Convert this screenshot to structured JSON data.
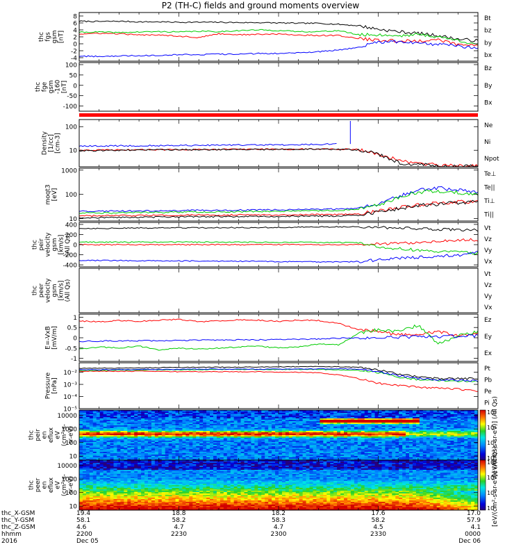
{
  "title": "P2 (TH-C) fields and ground moments overview",
  "chart_data": [
    {
      "type": "line",
      "ylabel": [
        "thc",
        "fgs",
        "gsm",
        "[nT]"
      ],
      "ylim": [
        -5,
        9
      ],
      "yticks": [
        -4,
        -2,
        0,
        2,
        4,
        6,
        8
      ],
      "series": [
        {
          "name": "Bt",
          "color": "#000000",
          "values": [
            6.5,
            6.4,
            6.5,
            6.3,
            6.3,
            6.2,
            6.2,
            6.2,
            6.1,
            6.1,
            6.0,
            5.9,
            5.9,
            5.6,
            5.2,
            4.2,
            3.5,
            3.0,
            2.4,
            1.3,
            0.9
          ]
        },
        {
          "name": "bz",
          "color": "#ff0000",
          "values": [
            2.8,
            3.0,
            2.9,
            2.5,
            2.6,
            2.2,
            1.8,
            2.9,
            2.6,
            2.7,
            2.8,
            2.5,
            2.4,
            2.4,
            1.5,
            1.0,
            0.8,
            0.8,
            1.2,
            -0.3,
            -0.5
          ]
        },
        {
          "name": "by",
          "color": "#00cc00",
          "values": [
            3.3,
            3.4,
            3.2,
            3.4,
            3.5,
            3.4,
            3.6,
            3.5,
            3.8,
            4.0,
            3.8,
            3.5,
            3.5,
            3.8,
            2.6,
            2.6,
            2.3,
            2.7,
            2.0,
            1.0,
            -0.1
          ]
        },
        {
          "name": "bx",
          "color": "#0000ff",
          "values": [
            -3.6,
            -3.6,
            -3.5,
            -3.4,
            -3.3,
            -3.1,
            -3.1,
            -3.0,
            -3.0,
            -2.8,
            -2.8,
            -2.5,
            -2.3,
            -1.8,
            -1.0,
            0.5,
            0.6,
            0.2,
            -0.2,
            -0.6,
            -1.2
          ]
        }
      ]
    },
    {
      "type": "line",
      "ylabel": [
        "thc",
        "fge",
        "gsm",
        "-160",
        "[nT]"
      ],
      "ylim": [
        -125,
        110
      ],
      "yticks": [
        -100,
        -50,
        0,
        50,
        100
      ],
      "series": [
        {
          "name": "Bz",
          "color": "#ff0000",
          "values": []
        },
        {
          "name": "By",
          "color": "#00cc00",
          "values": []
        },
        {
          "name": "Bx",
          "color": "#0000ff",
          "values": []
        }
      ]
    },
    {
      "type": "line",
      "ylabel": [
        "Density",
        "[1/cc]",
        "[cm-3]"
      ],
      "yscale": "log",
      "ylim": [
        2,
        200
      ],
      "yticks": [
        1,
        10,
        100
      ],
      "series": [
        {
          "name": "Ne",
          "color": "#ff0000",
          "values": [
            10,
            10.2,
            10.3,
            10.5,
            10.6,
            10.8,
            10.9,
            11,
            11,
            11,
            11.1,
            11.2,
            11.3,
            11.1,
            10.8,
            7,
            3.5,
            2.8,
            2.3,
            2.1,
            2.3
          ]
        },
        {
          "name": "Ni",
          "color": "#000000",
          "values": [
            9.5,
            9.8,
            10,
            10.2,
            10.4,
            10.5,
            10.6,
            10.7,
            10.8,
            10.8,
            10.9,
            11,
            11,
            10.8,
            10.5,
            6.5,
            3,
            2.5,
            2.1,
            2.0,
            2.2
          ]
        },
        {
          "name": "Npot",
          "color": "#0000ff",
          "values": [
            15,
            15,
            15.5,
            15.6,
            15.8,
            16,
            16.2,
            16.4,
            16.6,
            16.8,
            17,
            17.2,
            17.8,
            18.5,
            null,
            null,
            null,
            null,
            null,
            null,
            null
          ]
        }
      ]
    },
    {
      "type": "line",
      "ylabel": [
        "moqt3",
        "[eV]"
      ],
      "yscale": "log",
      "ylim": [
        8,
        1200
      ],
      "yticks": [
        10,
        100,
        1000
      ],
      "series": [
        {
          "name": "Te⊥",
          "color": "#ff0000",
          "values": [
            13,
            13,
            13.2,
            13.5,
            13.8,
            14,
            14,
            14.1,
            14.2,
            14.3,
            14.4,
            14.5,
            14.7,
            15,
            16,
            20,
            28,
            36,
            42,
            48,
            52
          ]
        },
        {
          "name": "Te||",
          "color": "#000000",
          "values": [
            11,
            11,
            11.2,
            11.4,
            11.6,
            11.8,
            12,
            12.1,
            12.2,
            12.3,
            12.4,
            12.5,
            12.7,
            13,
            14,
            18,
            26,
            34,
            40,
            46,
            50
          ]
        },
        {
          "name": "Ti⊥",
          "color": "#0000ff",
          "values": [
            20,
            20,
            20.5,
            21,
            21,
            21.5,
            22,
            22,
            22.5,
            23,
            23,
            23.5,
            24,
            25,
            27,
            40,
            80,
            150,
            180,
            160,
            120
          ]
        },
        {
          "name": "Ti||",
          "color": "#00cc00",
          "values": [
            17,
            17,
            17.5,
            17.8,
            18,
            18.5,
            19,
            19,
            19.5,
            20,
            20,
            20.5,
            21,
            22,
            24,
            35,
            70,
            120,
            140,
            120,
            90
          ]
        }
      ]
    },
    {
      "type": "line",
      "ylabel": [
        "thc",
        "peir",
        "velocity",
        "gsm",
        "[km/s]",
        "(All Qs)"
      ],
      "ylim": [
        -440,
        440
      ],
      "yticks": [
        -400,
        -200,
        0,
        200,
        400
      ],
      "series": [
        {
          "name": "Vt",
          "color": "#000000",
          "values": [
            320,
            322,
            325,
            328,
            330,
            332,
            333,
            334,
            336,
            338,
            340,
            345,
            350,
            352,
            350,
            340,
            330,
            320,
            305,
            295,
            285
          ]
        },
        {
          "name": "Vz",
          "color": "#ff0000",
          "values": [
            0,
            0,
            0,
            0,
            0,
            0,
            0,
            0,
            0,
            0,
            0,
            0,
            0,
            0,
            2,
            10,
            20,
            40,
            70,
            90,
            95
          ]
        },
        {
          "name": "Vy",
          "color": "#00cc00",
          "values": [
            50,
            50,
            50,
            50,
            50,
            50,
            50,
            49,
            48,
            48,
            47,
            46,
            45,
            42,
            35,
            -40,
            -80,
            -110,
            -130,
            -150,
            -165
          ]
        },
        {
          "name": "Vx",
          "color": "#0000ff",
          "values": [
            -310,
            -312,
            -315,
            -318,
            -320,
            -322,
            -325,
            -327,
            -330,
            -332,
            -335,
            -338,
            -342,
            -345,
            -335,
            -300,
            -270,
            -250,
            -230,
            -210,
            -150
          ]
        }
      ]
    },
    {
      "type": "line",
      "ylabel": [
        "thc",
        "peer",
        "velocity",
        "gsm",
        "[km/s]",
        "(All Qs)"
      ],
      "ylim": [
        -420,
        420
      ],
      "yticks": [],
      "series": [
        {
          "name": "Vt",
          "color": "#000000",
          "values": []
        },
        {
          "name": "Vz",
          "color": "#ff0000",
          "values": []
        },
        {
          "name": "Vy",
          "color": "#00cc00",
          "values": []
        },
        {
          "name": "Vx",
          "color": "#0000ff",
          "values": []
        }
      ]
    },
    {
      "type": "line",
      "ylabel": [
        "E=-VxB",
        "[mV/m]"
      ],
      "ylim": [
        -1.15,
        1.15
      ],
      "yticks": [
        -1.0,
        -0.5,
        0.0,
        0.5,
        1.0
      ],
      "series": [
        {
          "name": "Ez",
          "color": "#ff0000",
          "values": [
            0.82,
            0.78,
            0.84,
            0.8,
            0.86,
            0.9,
            0.78,
            0.82,
            0.88,
            0.85,
            0.8,
            0.86,
            0.84,
            0.7,
            0.4,
            0.3,
            0.15,
            0.2,
            0.3,
            0.1,
            0.2
          ]
        },
        {
          "name": "Ey",
          "color": "#00cc00",
          "values": [
            -0.55,
            -0.45,
            -0.5,
            -0.4,
            -0.6,
            -0.5,
            -0.55,
            -0.5,
            -0.45,
            -0.4,
            -0.5,
            -0.45,
            -0.3,
            -0.35,
            0.2,
            0.4,
            0.3,
            0.6,
            -0.3,
            0.1,
            0.3
          ]
        },
        {
          "name": "Ex",
          "color": "#0000ff",
          "values": [
            -0.18,
            -0.16,
            -0.15,
            -0.15,
            -0.14,
            -0.13,
            -0.12,
            -0.11,
            -0.1,
            -0.1,
            -0.09,
            -0.08,
            -0.06,
            -0.02,
            0.0,
            0.02,
            0.03,
            0.05,
            0.06,
            0.08,
            0.1
          ]
        }
      ]
    },
    {
      "type": "line",
      "ylabel": [
        "Pressure",
        "[nPa]"
      ],
      "yscale": "log",
      "ylim": [
        1e-05,
        0.06
      ],
      "yticks": [
        1e-05,
        0.0001,
        0.001,
        0.01
      ],
      "ytick_labels": [
        "10⁻⁵",
        "10⁻⁴",
        "10⁻³",
        "10⁻²"
      ],
      "series": [
        {
          "name": "Pt",
          "color": "#000000",
          "values": [
            0.021,
            0.022,
            0.022,
            0.023,
            0.024,
            0.025,
            0.025,
            0.026,
            0.026,
            0.027,
            0.028,
            0.029,
            0.03,
            0.028,
            0.025,
            0.015,
            0.007,
            0.004,
            0.003,
            0.003,
            0.003
          ]
        },
        {
          "name": "Pb",
          "color": "#ff0000",
          "values": [
            0.012,
            0.012,
            0.012,
            0.012,
            0.012,
            0.011,
            0.011,
            0.011,
            0.011,
            0.011,
            0.01,
            0.01,
            0.009,
            0.006,
            0.003,
            0.0012,
            0.0008,
            0.0006,
            0.0005,
            0.0004,
            0.0003
          ]
        },
        {
          "name": "Pe",
          "color": "#00cc00",
          "values": [
            0.014,
            0.014,
            0.015,
            0.015,
            0.016,
            0.016,
            0.016,
            0.017,
            0.017,
            0.017,
            0.017,
            0.017,
            0.017,
            0.016,
            0.014,
            0.009,
            0.004,
            0.0025,
            0.002,
            0.0019,
            0.0018
          ]
        },
        {
          "name": "Pi",
          "color": "#0000ff",
          "values": [
            0.016,
            0.016,
            0.017,
            0.017,
            0.017,
            0.017,
            0.018,
            0.018,
            0.018,
            0.018,
            0.018,
            0.018,
            0.019,
            0.019,
            0.018,
            0.011,
            0.005,
            0.003,
            0.0025,
            0.0022,
            0.002
          ]
        }
      ]
    },
    {
      "type": "heatmap",
      "ylabel": [
        "thc",
        "peir",
        "en",
        "eflux",
        "eV",
        "(cm²-s-",
        "sr-eV)"
      ],
      "yscale": "log",
      "ylim": [
        5,
        25000
      ],
      "yticks": [
        10,
        100,
        1000,
        10000
      ],
      "zlabel": "[eV/(cm²-s-sr-eV)] (All Qs)",
      "zlim": [
        100,
        100000000
      ],
      "ztick_labels": [
        "10²",
        "10⁴",
        "10⁶",
        "10⁸"
      ]
    },
    {
      "type": "heatmap",
      "ylabel": [
        "thc",
        "peer",
        "en",
        "eflux",
        "eV",
        "(cm²-s-",
        "sr-eV)"
      ],
      "yscale": "log",
      "ylim": [
        5,
        25000
      ],
      "yticks": [
        10,
        100,
        1000,
        10000
      ],
      "zlabel": "[eV/(cm²-s-sr-eV)] (All Qs)",
      "zlim": [
        100,
        100000000
      ],
      "ztick_labels": [
        "10²",
        "10⁴",
        "10⁶",
        "10⁸"
      ]
    }
  ],
  "xaxis": {
    "row_labels": [
      "thc_X-GSM",
      "thc_Y-GSM",
      "thc_Z-GSM",
      "hhmm",
      "2016"
    ],
    "ticks": [
      {
        "pos": 0.0,
        "rows": [
          "19.4",
          "58.1",
          "4.6",
          "2200",
          "Dec 05"
        ]
      },
      {
        "pos": 0.25,
        "rows": [
          "18.8",
          "58.2",
          "4.7",
          "2230",
          ""
        ]
      },
      {
        "pos": 0.5,
        "rows": [
          "18.2",
          "58.3",
          "4.7",
          "2300",
          ""
        ]
      },
      {
        "pos": 0.75,
        "rows": [
          "17.6",
          "58.2",
          "4.5",
          "2330",
          ""
        ]
      },
      {
        "pos": 1.0,
        "rows": [
          "17.0",
          "57.9",
          "4.1",
          "0000",
          "Dec 06"
        ]
      }
    ]
  }
}
